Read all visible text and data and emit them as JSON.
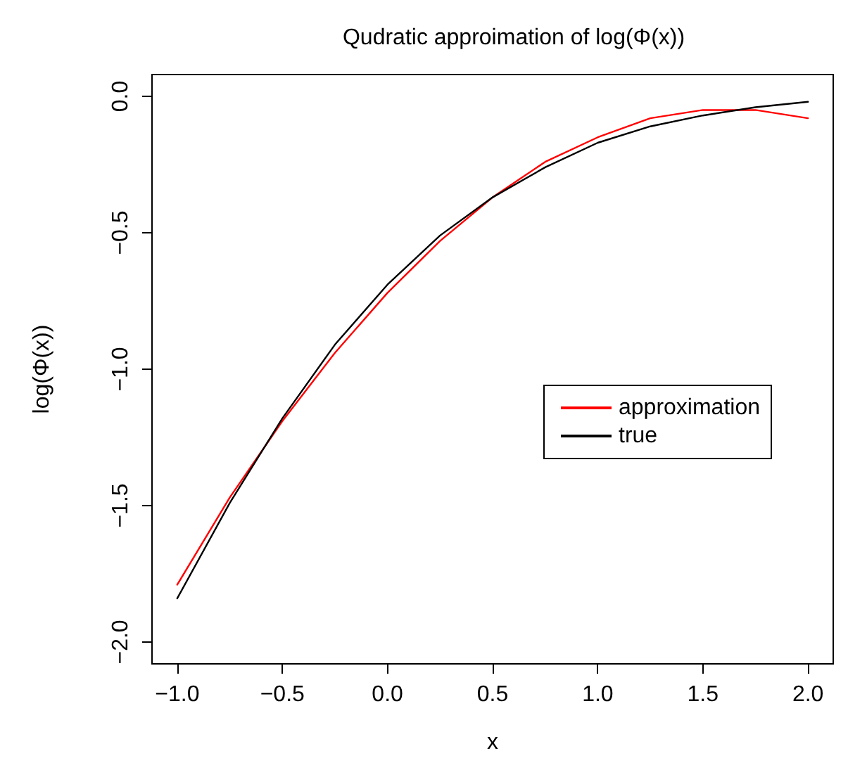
{
  "chart_data": {
    "type": "line",
    "title": "Qudratic approimation of log(Φ(x))",
    "xlabel": "x",
    "ylabel": "log(Φ(x))",
    "x": [
      -1,
      -0.75,
      -0.5,
      -0.25,
      0,
      0.25,
      0.5,
      0.75,
      1,
      1.25,
      1.5,
      1.75,
      2
    ],
    "series": [
      {
        "name": "approximation",
        "color": "#ff0000",
        "values": [
          -1.79,
          -1.47,
          -1.19,
          -0.94,
          -0.72,
          -0.53,
          -0.37,
          -0.24,
          -0.15,
          -0.08,
          -0.05,
          -0.05,
          -0.08
        ]
      },
      {
        "name": "true",
        "color": "#000000",
        "values": [
          -1.84,
          -1.49,
          -1.18,
          -0.91,
          -0.69,
          -0.51,
          -0.37,
          -0.26,
          -0.17,
          -0.11,
          -0.07,
          -0.04,
          -0.02
        ]
      }
    ],
    "xlim": [
      -1.12,
      2.12
    ],
    "ylim": [
      -2.08,
      0.08
    ],
    "xticks": [
      {
        "value": -1,
        "label": "−1.0"
      },
      {
        "value": -0.5,
        "label": "−0.5"
      },
      {
        "value": 0,
        "label": "0.0"
      },
      {
        "value": 0.5,
        "label": "0.5"
      },
      {
        "value": 1,
        "label": "1.0"
      },
      {
        "value": 1.5,
        "label": "1.5"
      },
      {
        "value": 2,
        "label": "2.0"
      }
    ],
    "yticks": [
      {
        "value": -2,
        "label": "−2.0"
      },
      {
        "value": -1.5,
        "label": "−1.5"
      },
      {
        "value": -1,
        "label": "−1.0"
      },
      {
        "value": -0.5,
        "label": "−0.5"
      },
      {
        "value": 0,
        "label": "0.0"
      }
    ],
    "grid": false,
    "legend": "right",
    "marker": "none",
    "line_style": "solid"
  }
}
